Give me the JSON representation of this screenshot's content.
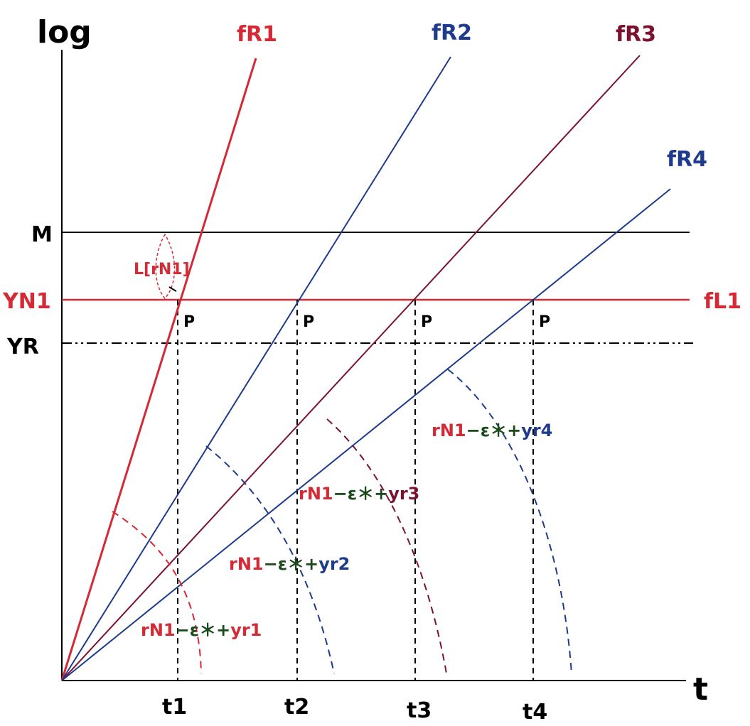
{
  "axes": {
    "y_label": "log",
    "x_label": "t",
    "x_ticks": [
      "t1",
      "t2",
      "t3",
      "t4"
    ]
  },
  "levels": {
    "m_label": "M",
    "yn1_label": "YN1",
    "yr_label": "YR",
    "fl1_label": "fL1"
  },
  "rays": [
    {
      "label": "fR1",
      "color": "#d42a35"
    },
    {
      "label": "fR2",
      "color": "#1f3b8c"
    },
    {
      "label": "fR3",
      "color": "#7a1230"
    },
    {
      "label": "fR4",
      "color": "#1f3b8c"
    }
  ],
  "points": {
    "p_label": "P"
  },
  "annotation": {
    "text": "L[rN1]"
  },
  "formulas": [
    {
      "part1": "rN1",
      "part2": "−ε＊+",
      "part3": "yr1"
    },
    {
      "part1": "rN1",
      "part2": "−ε＊+",
      "part3": "yr2"
    },
    {
      "part1": "rN1",
      "part2": "−ε＊+",
      "part3": "yr3"
    },
    {
      "part1": "rN1",
      "part2": "−ε＊+",
      "part3": "yr4"
    }
  ],
  "colors": {
    "red": "#d42a35",
    "blue": "#1f3b8c",
    "maroon": "#7a1230",
    "black": "#000000",
    "green": "#1a4a1a"
  }
}
